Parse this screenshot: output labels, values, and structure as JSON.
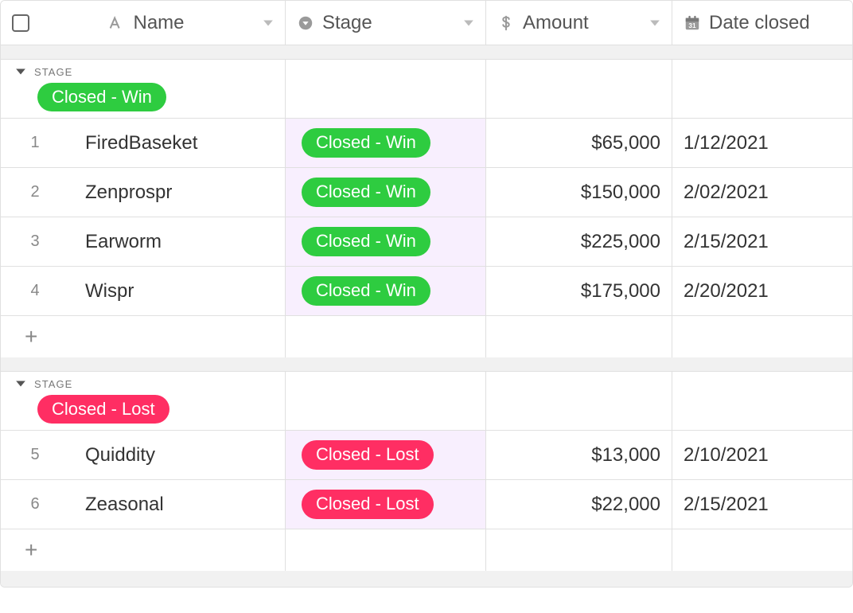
{
  "columns": {
    "name": {
      "label": "Name",
      "icon": "text-icon"
    },
    "stage": {
      "label": "Stage",
      "icon": "dropdown-icon"
    },
    "amount": {
      "label": "Amount",
      "icon": "currency-icon"
    },
    "date_closed": {
      "label": "Date closed",
      "icon": "calendar-icon"
    }
  },
  "group_by_label": "STAGE",
  "stage_colors": {
    "win": "#2ecc40",
    "lost": "#ff2e63"
  },
  "stage_cell_bg": "#f8effe",
  "groups": [
    {
      "key": "win",
      "pill_label": "Closed - Win",
      "color_key": "win",
      "rows": [
        {
          "n": "1",
          "name": "FiredBaseket",
          "stage": "Closed - Win",
          "amount": "$65,000",
          "date": "1/12/2021"
        },
        {
          "n": "2",
          "name": "Zenprospr",
          "stage": "Closed - Win",
          "amount": "$150,000",
          "date": "2/02/2021"
        },
        {
          "n": "3",
          "name": "Earworm",
          "stage": "Closed - Win",
          "amount": "$225,000",
          "date": "2/15/2021"
        },
        {
          "n": "4",
          "name": "Wispr",
          "stage": "Closed - Win",
          "amount": "$175,000",
          "date": "2/20/2021"
        }
      ]
    },
    {
      "key": "lost",
      "pill_label": "Closed - Lost",
      "color_key": "lost",
      "rows": [
        {
          "n": "5",
          "name": "Quiddity",
          "stage": "Closed - Lost",
          "amount": "$13,000",
          "date": "2/10/2021"
        },
        {
          "n": "6",
          "name": "Zeasonal",
          "stage": "Closed - Lost",
          "amount": "$22,000",
          "date": "2/15/2021"
        }
      ]
    }
  ],
  "add_row_glyph": "+"
}
